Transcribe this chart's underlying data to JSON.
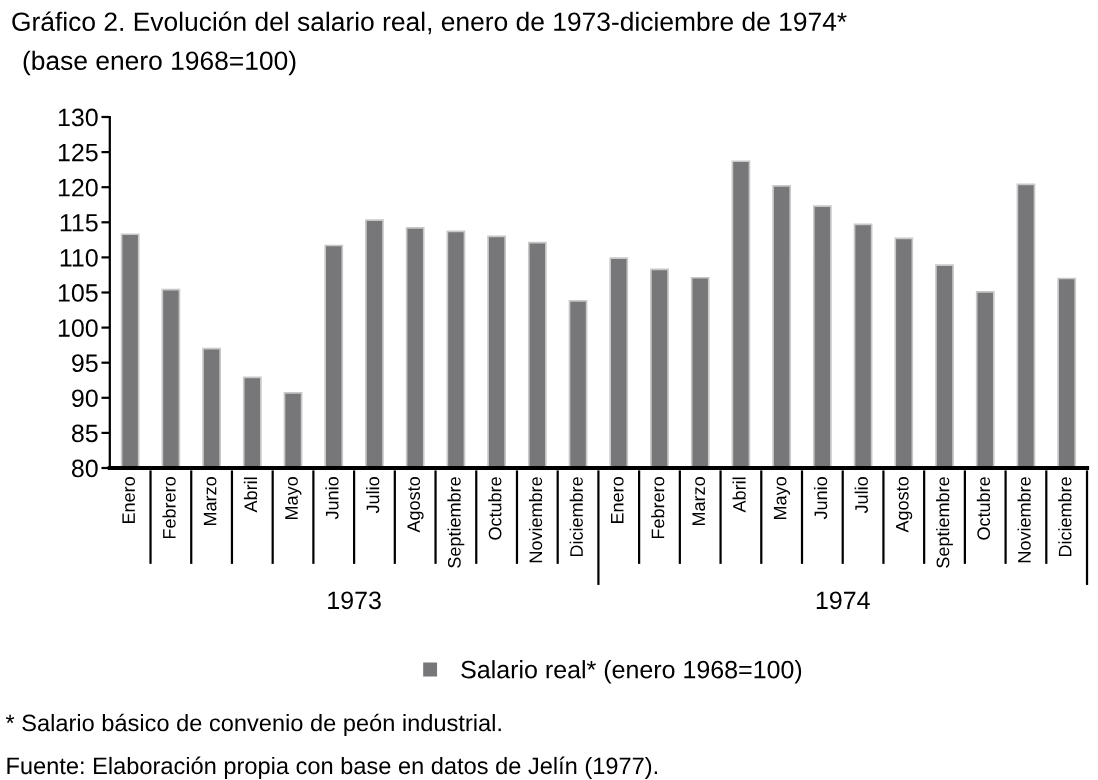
{
  "chart_data": {
    "type": "bar",
    "title": "Gráfico 2. Evolución del salario real, enero de 1973-diciembre de 1974*",
    "subtitle": "(base enero 1968=100)",
    "categories": [
      "Enero",
      "Febrero",
      "Marzo",
      "Abril",
      "Mayo",
      "Junio",
      "Julio",
      "Agosto",
      "Septiembre",
      "Octubre",
      "Noviembre",
      "Diciembre",
      "Enero",
      "Febrero",
      "Marzo",
      "Abril",
      "Mayo",
      "Junio",
      "Julio",
      "Agosto",
      "Septiembre",
      "Octubre",
      "Noviembre",
      "Diciembre"
    ],
    "series": [
      {
        "name": "Salario real* (enero 1968=100)",
        "color": "#77777a",
        "values": [
          113.3,
          105.4,
          97.0,
          92.9,
          90.7,
          111.7,
          115.3,
          114.2,
          113.7,
          113.0,
          112.1,
          103.8,
          109.9,
          108.3,
          107.1,
          123.7,
          120.2,
          117.3,
          114.7,
          112.7,
          108.9,
          105.1,
          120.4,
          107.0
        ]
      }
    ],
    "ylim": [
      80,
      130
    ],
    "yticks": [
      80,
      85,
      90,
      95,
      100,
      105,
      110,
      115,
      120,
      125,
      130
    ],
    "grid": false,
    "legend": "bottom",
    "annotations": [
      "1973",
      "1974",
      "* Salario básico de convenio de peón industrial.",
      "Fuente: Elaboración propia con base en datos de Jelín (1977)."
    ]
  }
}
